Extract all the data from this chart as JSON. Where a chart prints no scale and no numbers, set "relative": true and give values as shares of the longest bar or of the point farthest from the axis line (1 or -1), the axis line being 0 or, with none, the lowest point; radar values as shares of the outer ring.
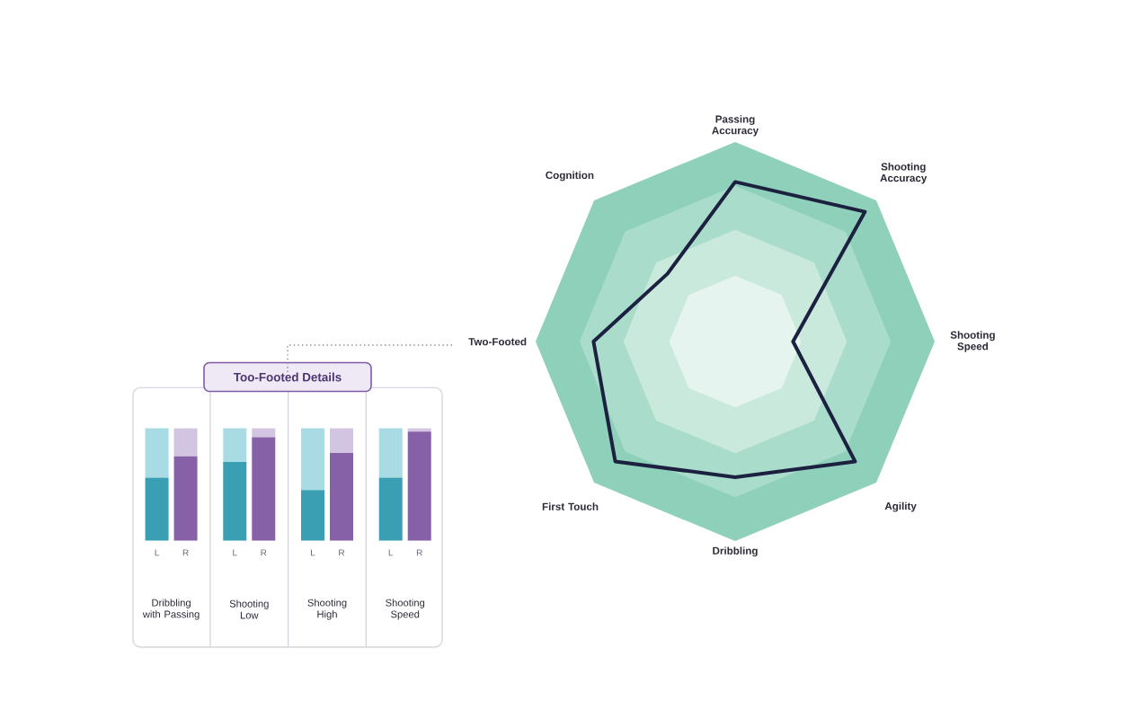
{
  "chart_data": [
    {
      "type": "radar",
      "categories": [
        "Passing Accuracy",
        "Shooting Accuracy",
        "Shooting Speed",
        "Agility",
        "Dribbling",
        "First Touch",
        "Two-Footed",
        "Cognition"
      ],
      "relative": true,
      "grid": true,
      "series": [
        {
          "color": "#1c2140",
          "values": [
            0.8,
            0.92,
            0.29,
            0.85,
            0.68,
            0.85,
            0.71,
            0.48
          ]
        }
      ]
    },
    {
      "type": "bar",
      "title": "Too-Footed Details",
      "stacked": true,
      "relative": true,
      "categories": [
        "L",
        "R",
        "L",
        "R",
        "L",
        "R",
        "L",
        "R"
      ],
      "series": [
        {
          "colors": [
            "#3a9fb2",
            "#8761a8",
            "#3a9fb2",
            "#8761a8",
            "#3a9fb2",
            "#8761a8",
            "#3a9fb2",
            "#8761a8"
          ],
          "values": [
            0.56,
            0.75,
            0.7,
            0.92,
            0.45,
            0.78,
            0.56,
            0.97
          ]
        },
        {
          "colors": [
            "#a8dbe3",
            "#d2c5e1",
            "#a8dbe3",
            "#d2c5e1",
            "#a8dbe3",
            "#d2c5e1",
            "#a8dbe3",
            "#d2c5e1"
          ],
          "values": [
            0.44,
            0.25,
            0.3,
            0.08,
            0.55,
            0.22,
            0.44,
            0.03
          ]
        }
      ],
      "annotations": [
        "Dribbling with Passing",
        "Shooting Low",
        "Shooting High",
        "Shooting Speed"
      ]
    }
  ]
}
